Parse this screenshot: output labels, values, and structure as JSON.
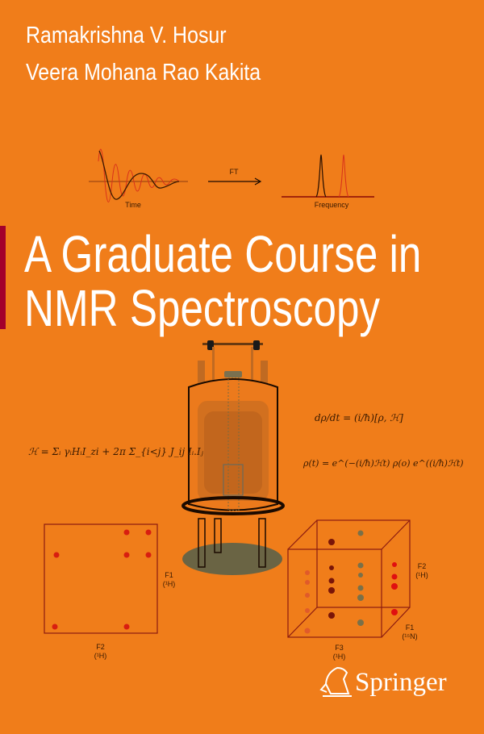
{
  "cover": {
    "authors": [
      "Ramakrishna V. Hosur",
      "Veera Mohana Rao Kakita"
    ],
    "title_lines": [
      "A Graduate Course in",
      "NMR Spectroscopy"
    ],
    "publisher": "Springer",
    "publisher_logo_icon": "springer-horse-head-icon"
  },
  "figure_fid": {
    "time_label": "Time",
    "arrow_label": "FT",
    "frequency_label": "Frequency"
  },
  "equations": {
    "hamiltonian": "ℋ = Σᵢ γᵢHᵢI_zi + 2π Σ_{i<j} J_ij Iᵢ.Iⱼ",
    "liouville": "dρ/dt = (i/ħ)[ρ, ℋ]",
    "propagation": "ρ(t) = e^(−(i/ħ)ℋt) ρ(o) e^((i/ħ)ℋt)"
  },
  "spectrum_2d": {
    "f1_label": "F1",
    "f1_nucleus": "(¹H)",
    "f2_label": "F2",
    "f2_nucleus": "(¹H)"
  },
  "spectrum_3d": {
    "f1_label": "F1",
    "f1_nucleus": "(¹⁵N)",
    "f2_label": "F2",
    "f2_nucleus": "(¹H)",
    "f3_label": "F3",
    "f3_nucleus": "(¹H)"
  },
  "colors": {
    "background": "#f07d1a",
    "accent_bar": "#a3002b",
    "text": "#ffffff",
    "diagram_lines": "#8b1a10"
  }
}
